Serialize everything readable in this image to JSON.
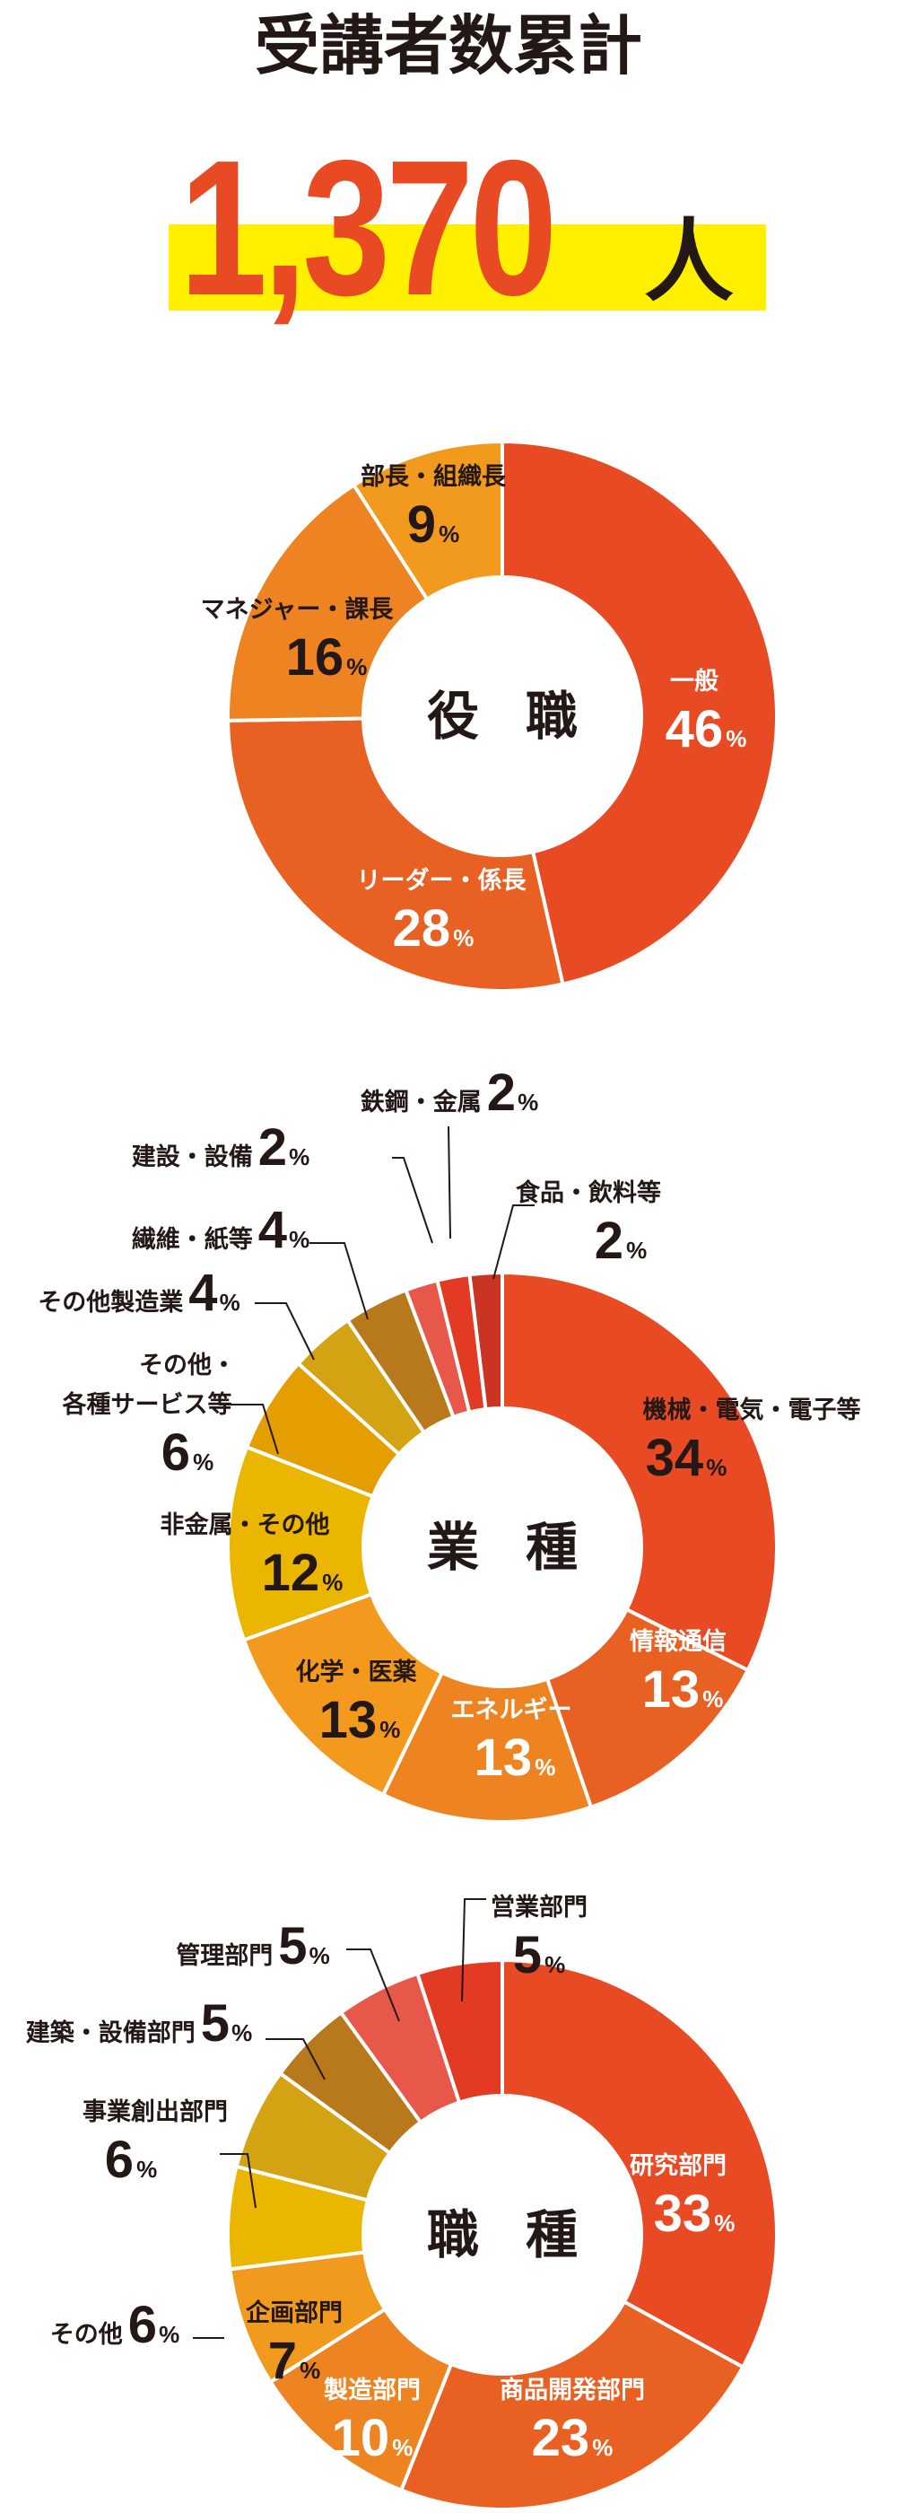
{
  "header": {
    "title": "受講者数累計",
    "total": "1,370",
    "unit": "人",
    "highlight_color": "#FFF000",
    "number_color": "#E84A23"
  },
  "chart_data": [
    {
      "type": "pie",
      "variant": "donut",
      "center_label": [
        "役",
        "職"
      ],
      "unit": "%",
      "segments": [
        {
          "label": "一般",
          "value": 46,
          "color": "#E84A23"
        },
        {
          "label": "リーダー・係長",
          "value": 28,
          "color": "#E96023"
        },
        {
          "label": "マネジャー・課長",
          "value": 16,
          "color": "#EE8421"
        },
        {
          "label": "部長・組織長",
          "value": 9,
          "color": "#F29A1E"
        }
      ]
    },
    {
      "type": "pie",
      "variant": "donut",
      "center_label": [
        "業",
        "種"
      ],
      "unit": "%",
      "segments": [
        {
          "label": "機械・電気・電子等",
          "value": 34,
          "color": "#E84A23"
        },
        {
          "label": "情報通信",
          "value": 13,
          "color": "#E96023"
        },
        {
          "label": "エネルギー",
          "value": 13,
          "color": "#EE8421"
        },
        {
          "label": "化学・医薬",
          "value": 13,
          "color": "#F39A1E"
        },
        {
          "label": "非金属・その他",
          "value": 12,
          "color": "#EBB600"
        },
        {
          "label": "その他・各種サービス等",
          "value": 6,
          "color": "#E59E00"
        },
        {
          "label": "その他製造業",
          "value": 4,
          "color": "#D4A314"
        },
        {
          "label": "繊維・紙等",
          "value": 4,
          "color": "#B7791C"
        },
        {
          "label": "建設・設備",
          "value": 2,
          "color": "#E8584A"
        },
        {
          "label": "鉄鋼・金属",
          "value": 2,
          "color": "#E33A24"
        },
        {
          "label": "食品・飲料等",
          "value": 2,
          "color": "#C93522"
        }
      ]
    },
    {
      "type": "pie",
      "variant": "donut",
      "center_label": [
        "職",
        "種"
      ],
      "unit": "%",
      "segments": [
        {
          "label": "研究部門",
          "value": 33,
          "color": "#E84A23"
        },
        {
          "label": "商品開発部門",
          "value": 23,
          "color": "#E96023"
        },
        {
          "label": "製造部門",
          "value": 10,
          "color": "#EE8421"
        },
        {
          "label": "企画部門",
          "value": 7,
          "color": "#F29A1E"
        },
        {
          "label": "その他",
          "value": 6,
          "color": "#EBB600"
        },
        {
          "label": "事業創出部門",
          "value": 6,
          "color": "#D4A314"
        },
        {
          "label": "建築・設備部門",
          "value": 5,
          "color": "#B7791C"
        },
        {
          "label": "管理部門",
          "value": 5,
          "color": "#E8584A"
        },
        {
          "label": "営業部門",
          "value": 5,
          "color": "#E33A24"
        }
      ]
    }
  ]
}
